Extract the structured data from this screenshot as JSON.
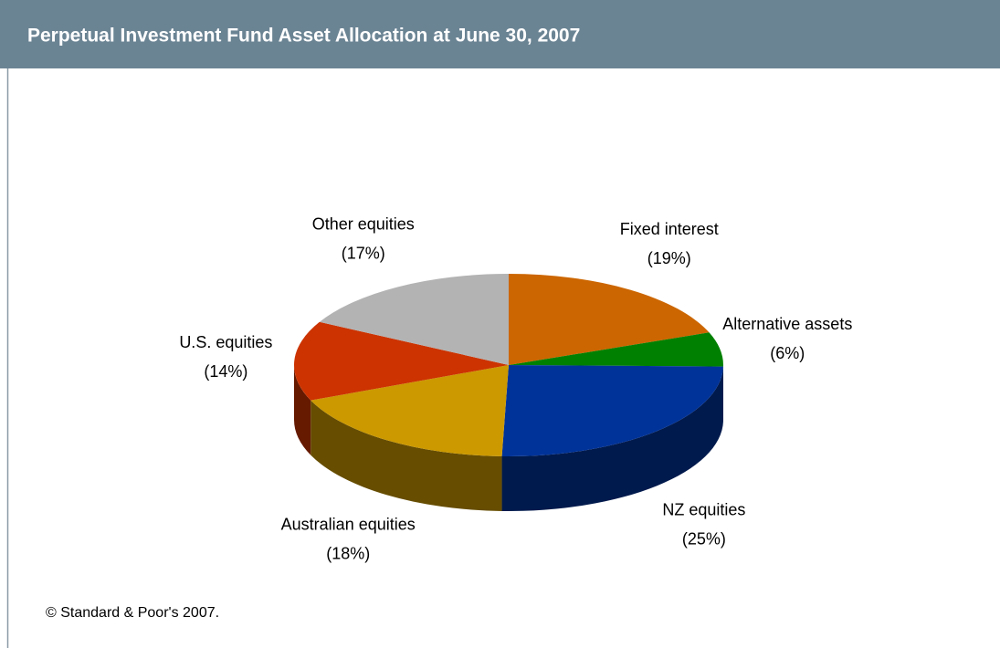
{
  "chart_data": {
    "type": "pie3d",
    "title": "Perpetual Investment Fund Asset Allocation at June 30, 2007",
    "categories": [
      "Fixed interest",
      "Alternative assets",
      "NZ equities",
      "Australian equities",
      "U.S. equities",
      "Other equities"
    ],
    "values": [
      19,
      6,
      25,
      18,
      14,
      17
    ],
    "value_labels": [
      "(19%)",
      "(6%)",
      "(25%)",
      "(18%)",
      "(14%)",
      "(17%)"
    ],
    "colors": [
      "#cc6600",
      "#008000",
      "#003399",
      "#cc9900",
      "#cc3300",
      "#b3b3b3"
    ],
    "source": "© Standard & Poor's 2007."
  }
}
